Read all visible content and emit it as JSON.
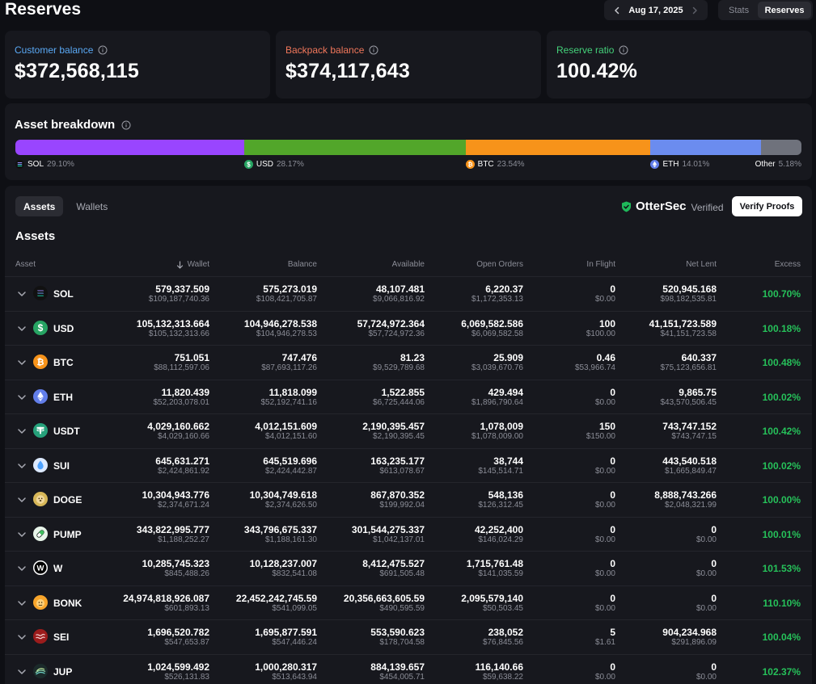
{
  "page": {
    "title": "Reserves"
  },
  "date_nav": {
    "date": "Aug 17, 2025"
  },
  "view_toggle": {
    "stats": "Stats",
    "reserves": "Reserves"
  },
  "summary": {
    "customer": {
      "label": "Customer balance",
      "value": "$372,568,115",
      "color": "#5aa9f5"
    },
    "backpack": {
      "label": "Backpack balance",
      "value": "$374,117,643",
      "color": "#f1775b"
    },
    "ratio": {
      "label": "Reserve ratio",
      "value": "100.42%",
      "color": "#44d17a"
    }
  },
  "breakdown": {
    "title": "Asset breakdown",
    "segments": [
      {
        "name": "SOL",
        "percent": "29.10%",
        "share": 29.1,
        "color": "#9945ff"
      },
      {
        "name": "USD",
        "percent": "28.17%",
        "share": 28.17,
        "color": "#52a62a"
      },
      {
        "name": "BTC",
        "percent": "23.54%",
        "share": 23.54,
        "color": "#f7931a"
      },
      {
        "name": "ETH",
        "percent": "14.01%",
        "share": 14.01,
        "color": "#6b8cef"
      },
      {
        "name": "Other",
        "percent": "5.18%",
        "share": 5.18,
        "color": "#6f727c"
      }
    ]
  },
  "assets": {
    "tabs": [
      "Assets",
      "Wallets"
    ],
    "verified_brand": "OtterSec",
    "verified_text": "Verified",
    "verify_button": "Verify Proofs",
    "section_title": "Assets",
    "columns": [
      "Asset",
      "Wallet",
      "Balance",
      "Available",
      "Open Orders",
      "In Flight",
      "Net Lent",
      "Excess"
    ],
    "rows": [
      {
        "symbol": "SOL",
        "icon": "sol-icon",
        "color": "#111111",
        "wallet": "579,337.509",
        "wallet_usd": "$109,187,740.36",
        "balance": "575,273.019",
        "balance_usd": "$108,421,705.87",
        "available": "48,107.481",
        "available_usd": "$9,066,816.92",
        "open_orders": "6,220.37",
        "open_orders_usd": "$1,172,353.13",
        "in_flight": "0",
        "in_flight_usd": "$0.00",
        "net_lent": "520,945.168",
        "net_lent_usd": "$98,182,535.81",
        "excess": "100.70%"
      },
      {
        "symbol": "USD",
        "icon": "usd-icon",
        "color": "#27a463",
        "wallet": "105,132,313.664",
        "wallet_usd": "$105,132,313.66",
        "balance": "104,946,278.538",
        "balance_usd": "$104,946,278.53",
        "available": "57,724,972.364",
        "available_usd": "$57,724,972.36",
        "open_orders": "6,069,582.586",
        "open_orders_usd": "$6,069,582.58",
        "in_flight": "100",
        "in_flight_usd": "$100.00",
        "net_lent": "41,151,723.589",
        "net_lent_usd": "$41,151,723.58",
        "excess": "100.18%"
      },
      {
        "symbol": "BTC",
        "icon": "btc-icon",
        "color": "#f7931a",
        "wallet": "751.051",
        "wallet_usd": "$88,112,597.06",
        "balance": "747.476",
        "balance_usd": "$87,693,117.26",
        "available": "81.23",
        "available_usd": "$9,529,789.68",
        "open_orders": "25.909",
        "open_orders_usd": "$3,039,670.76",
        "in_flight": "0.46",
        "in_flight_usd": "$53,966.74",
        "net_lent": "640.337",
        "net_lent_usd": "$75,123,656.81",
        "excess": "100.48%"
      },
      {
        "symbol": "ETH",
        "icon": "eth-icon",
        "color": "#627eea",
        "wallet": "11,820.439",
        "wallet_usd": "$52,203,078.01",
        "balance": "11,818.099",
        "balance_usd": "$52,192,741.16",
        "available": "1,522.855",
        "available_usd": "$6,725,444.06",
        "open_orders": "429.494",
        "open_orders_usd": "$1,896,790.64",
        "in_flight": "0",
        "in_flight_usd": "$0.00",
        "net_lent": "9,865.75",
        "net_lent_usd": "$43,570,506.45",
        "excess": "100.02%"
      },
      {
        "symbol": "USDT",
        "icon": "usdt-icon",
        "color": "#26a17b",
        "wallet": "4,029,160.662",
        "wallet_usd": "$4,029,160.66",
        "balance": "4,012,151.609",
        "balance_usd": "$4,012,151.60",
        "available": "2,190,395.457",
        "available_usd": "$2,190,395.45",
        "open_orders": "1,078,009",
        "open_orders_usd": "$1,078,009.00",
        "in_flight": "150",
        "in_flight_usd": "$150.00",
        "net_lent": "743,747.152",
        "net_lent_usd": "$743,747.15",
        "excess": "100.42%"
      },
      {
        "symbol": "SUI",
        "icon": "sui-icon",
        "color": "#dce9ff",
        "wallet": "645,631.271",
        "wallet_usd": "$2,424,861.92",
        "balance": "645,519.696",
        "balance_usd": "$2,424,442.87",
        "available": "163,235.177",
        "available_usd": "$613,078.67",
        "open_orders": "38,744",
        "open_orders_usd": "$145,514.71",
        "in_flight": "0",
        "in_flight_usd": "$0.00",
        "net_lent": "443,540.518",
        "net_lent_usd": "$1,665,849.47",
        "excess": "100.02%"
      },
      {
        "symbol": "DOGE",
        "icon": "doge-icon",
        "color": "#d7b758",
        "wallet": "10,304,943.776",
        "wallet_usd": "$2,374,671.24",
        "balance": "10,304,749.618",
        "balance_usd": "$2,374,626.50",
        "available": "867,870.352",
        "available_usd": "$199,992.04",
        "open_orders": "548,136",
        "open_orders_usd": "$126,312.45",
        "in_flight": "0",
        "in_flight_usd": "$0.00",
        "net_lent": "8,888,743.266",
        "net_lent_usd": "$2,048,321.99",
        "excess": "100.00%"
      },
      {
        "symbol": "PUMP",
        "icon": "pump-icon",
        "color": "#e8f5ea",
        "wallet": "343,822,995.777",
        "wallet_usd": "$1,188,252.27",
        "balance": "343,796,675.337",
        "balance_usd": "$1,188,161.30",
        "available": "301,544,275.337",
        "available_usd": "$1,042,137.01",
        "open_orders": "42,252,400",
        "open_orders_usd": "$146,024.29",
        "in_flight": "0",
        "in_flight_usd": "$0.00",
        "net_lent": "0",
        "net_lent_usd": "$0.00",
        "excess": "100.01%"
      },
      {
        "symbol": "W",
        "icon": "wormhole-icon",
        "color": "#ffffff",
        "wallet": "10,285,745.323",
        "wallet_usd": "$845,488.26",
        "balance": "10,128,237.007",
        "balance_usd": "$832,541.08",
        "available": "8,412,475.527",
        "available_usd": "$691,505.48",
        "open_orders": "1,715,761.48",
        "open_orders_usd": "$141,035.59",
        "in_flight": "0",
        "in_flight_usd": "$0.00",
        "net_lent": "0",
        "net_lent_usd": "$0.00",
        "excess": "101.53%"
      },
      {
        "symbol": "BONK",
        "icon": "bonk-icon",
        "color": "#f8a52b",
        "wallet": "24,974,818,926.087",
        "wallet_usd": "$601,893.13",
        "balance": "22,452,242,745.59",
        "balance_usd": "$541,099.05",
        "available": "20,356,663,605.59",
        "available_usd": "$490,595.59",
        "open_orders": "2,095,579,140",
        "open_orders_usd": "$50,503.45",
        "in_flight": "0",
        "in_flight_usd": "$0.00",
        "net_lent": "0",
        "net_lent_usd": "$0.00",
        "excess": "110.10%"
      },
      {
        "symbol": "SEI",
        "icon": "sei-icon",
        "color": "#9b1c1c",
        "wallet": "1,696,520.782",
        "wallet_usd": "$547,653.87",
        "balance": "1,695,877.591",
        "balance_usd": "$547,446.24",
        "available": "553,590.623",
        "available_usd": "$178,704.58",
        "open_orders": "238,052",
        "open_orders_usd": "$76,845.56",
        "in_flight": "5",
        "in_flight_usd": "$1.61",
        "net_lent": "904,234.968",
        "net_lent_usd": "$291,896.09",
        "excess": "100.04%"
      },
      {
        "symbol": "JUP",
        "icon": "jup-icon",
        "color": "#1b2a2a",
        "wallet": "1,024,599.492",
        "wallet_usd": "$526,131.83",
        "balance": "1,000,280.317",
        "balance_usd": "$513,643.94",
        "available": "884,139.657",
        "available_usd": "$454,005.71",
        "open_orders": "116,140.66",
        "open_orders_usd": "$59,638.22",
        "in_flight": "0",
        "in_flight_usd": "$0.00",
        "net_lent": "0",
        "net_lent_usd": "$0.00",
        "excess": "102.37%"
      }
    ]
  }
}
